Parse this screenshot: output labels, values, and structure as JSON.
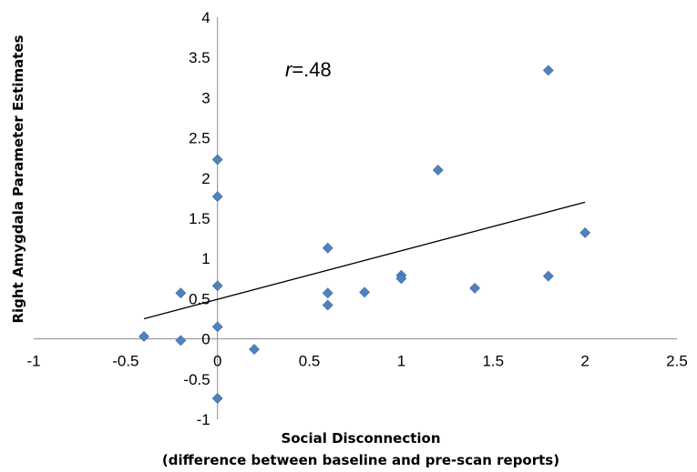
{
  "chart_data": {
    "type": "scatter",
    "title": "",
    "xlabel": "Social Disconnection",
    "xlabel_sub": "(difference between baseline and pre-scan reports)",
    "ylabel": "Right Amygdala Parameter Estimates",
    "xlim": [
      -1,
      2.5
    ],
    "ylim": [
      -1,
      4
    ],
    "xticks": [
      -1,
      -0.5,
      0,
      0.5,
      1,
      1.5,
      2,
      2.5
    ],
    "yticks": [
      -1,
      -0.5,
      0,
      0.5,
      1,
      1.5,
      2,
      2.5,
      3,
      3.5,
      4
    ],
    "xtick_labels": [
      "-1",
      "-0.5",
      "0",
      "0.5",
      "1",
      "1.5",
      "2",
      "2.5"
    ],
    "ytick_labels": [
      "-1",
      "-0.5",
      "0",
      "0.5",
      "1",
      "1.5",
      "2",
      "2.5",
      "3",
      "3.5",
      "4"
    ],
    "annotation": {
      "r_symbol": "r",
      "r_value": "=.48"
    },
    "marker_color": "#4f81bd",
    "trendline": {
      "x": [
        -0.4,
        2.0
      ],
      "y": [
        0.25,
        1.7
      ]
    },
    "points": [
      {
        "x": -0.4,
        "y": 0.03
      },
      {
        "x": -0.2,
        "y": 0.57
      },
      {
        "x": -0.2,
        "y": -0.02
      },
      {
        "x": 0.0,
        "y": 2.23
      },
      {
        "x": 0.0,
        "y": 1.77
      },
      {
        "x": 0.0,
        "y": 0.66
      },
      {
        "x": 0.0,
        "y": 0.15
      },
      {
        "x": 0.0,
        "y": -0.74
      },
      {
        "x": 0.2,
        "y": -0.13
      },
      {
        "x": 0.6,
        "y": 1.13
      },
      {
        "x": 0.6,
        "y": 0.57
      },
      {
        "x": 0.6,
        "y": 0.42
      },
      {
        "x": 0.8,
        "y": 0.58
      },
      {
        "x": 1.0,
        "y": 0.79
      },
      {
        "x": 1.0,
        "y": 0.75
      },
      {
        "x": 1.2,
        "y": 2.1
      },
      {
        "x": 1.4,
        "y": 0.63
      },
      {
        "x": 1.8,
        "y": 3.34
      },
      {
        "x": 1.8,
        "y": 0.78
      },
      {
        "x": 2.0,
        "y": 1.32
      }
    ]
  }
}
